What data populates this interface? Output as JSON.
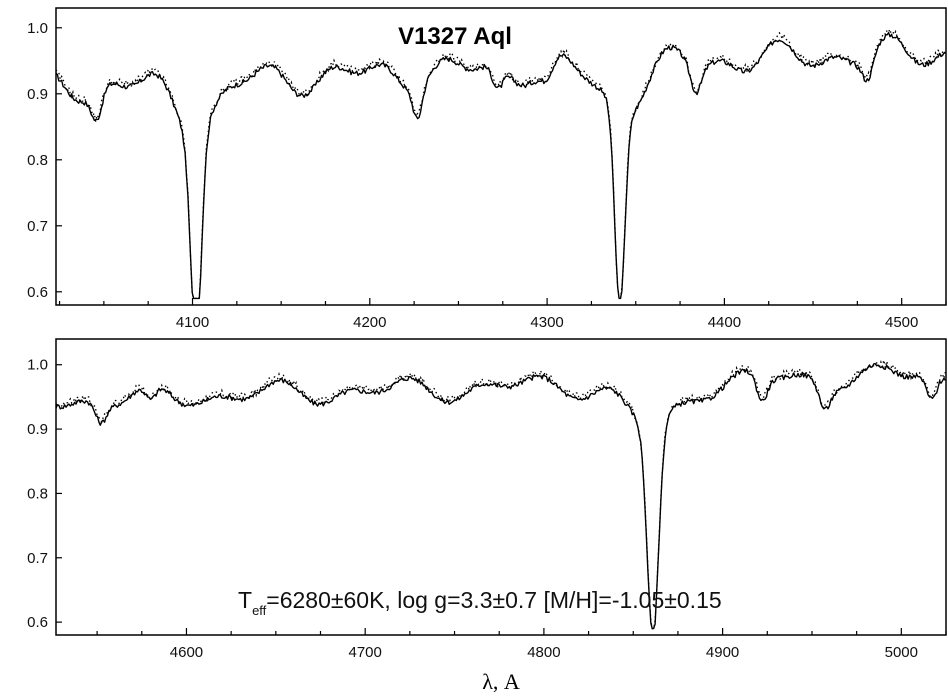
{
  "chart_data": [
    {
      "type": "line",
      "title": "V1327 Aql",
      "xlim": [
        4023,
        4525
      ],
      "ylim": [
        0.58,
        1.03
      ],
      "xticks": [
        4100,
        4200,
        4300,
        4400,
        4500
      ],
      "yticks": [
        0.6,
        0.7,
        0.8,
        0.9,
        1.0
      ],
      "xtick_labels": [
        "4100",
        "4200",
        "4300",
        "4400",
        "4500"
      ],
      "ytick_labels": [
        "0.6",
        "0.7",
        "0.8",
        "0.9",
        "1.0"
      ],
      "continuum": {
        "start": 0.91,
        "end": 0.965,
        "amplitude": 0.028,
        "period": 9.5
      },
      "lines": [
        {
          "center": 4102,
          "depth": 0.31,
          "width": 3.0,
          "wing_depth": 0.06,
          "wing_width": 12
        },
        {
          "center": 4341,
          "depth": 0.3,
          "width": 2.8,
          "wing_depth": 0.06,
          "wing_width": 12
        },
        {
          "center": 4227,
          "depth": 0.045,
          "width": 2.5,
          "wing_depth": 0,
          "wing_width": 1
        },
        {
          "center": 4272,
          "depth": 0.035,
          "width": 3.0,
          "wing_depth": 0,
          "wing_width": 1
        },
        {
          "center": 4046,
          "depth": 0.045,
          "width": 3.0,
          "wing_depth": 0,
          "wing_width": 1
        },
        {
          "center": 4384,
          "depth": 0.04,
          "width": 3.0,
          "wing_depth": 0,
          "wing_width": 1
        },
        {
          "center": 4481,
          "depth": 0.035,
          "width": 3.0,
          "wing_depth": 0,
          "wing_width": 1
        },
        {
          "center": 4300,
          "depth": 0.03,
          "width": 4.0,
          "wing_depth": 0,
          "wing_width": 1
        }
      ],
      "series": [
        {
          "style": "solid",
          "role": "observed"
        },
        {
          "style": "dotted",
          "role": "synthetic"
        }
      ],
      "grid": false
    },
    {
      "type": "line",
      "title": "",
      "xlabel": "λ, A",
      "xlim": [
        4527,
        5025
      ],
      "ylim": [
        0.58,
        1.04
      ],
      "xticks": [
        4600,
        4700,
        4800,
        4900,
        5000
      ],
      "yticks": [
        0.6,
        0.7,
        0.8,
        0.9,
        1.0
      ],
      "xtick_labels": [
        "4600",
        "4700",
        "4800",
        "4900",
        "5000"
      ],
      "ytick_labels": [
        "0.6",
        "0.7",
        "0.8",
        "0.9",
        "1.0"
      ],
      "continuum": {
        "start": 0.945,
        "end": 0.985,
        "amplitude": 0.022,
        "period": 11
      },
      "lines": [
        {
          "center": 4861,
          "depth": 0.33,
          "width": 3.2,
          "wing_depth": 0.07,
          "wing_width": 14
        },
        {
          "center": 4552,
          "depth": 0.03,
          "width": 3.0,
          "wing_depth": 0,
          "wing_width": 1
        },
        {
          "center": 4580,
          "depth": 0.025,
          "width": 3.0,
          "wing_depth": 0,
          "wing_width": 1
        },
        {
          "center": 4922,
          "depth": 0.04,
          "width": 3.0,
          "wing_depth": 0,
          "wing_width": 1
        },
        {
          "center": 4957,
          "depth": 0.035,
          "width": 3.0,
          "wing_depth": 0,
          "wing_width": 1
        },
        {
          "center": 5017,
          "depth": 0.04,
          "width": 3.0,
          "wing_depth": 0,
          "wing_width": 1
        }
      ],
      "series": [
        {
          "style": "solid",
          "role": "observed"
        },
        {
          "style": "dotted",
          "role": "synthetic"
        }
      ],
      "grid": false
    }
  ],
  "annotation": {
    "teff_symbol": "T",
    "teff_subscript": "eff",
    "teff_rest": "=6280±60K,  log g=3.3±0.7  [M/H]=-1.05±0.15"
  },
  "title_text": "V1327 Aql",
  "xlabel_text": "λ, A"
}
